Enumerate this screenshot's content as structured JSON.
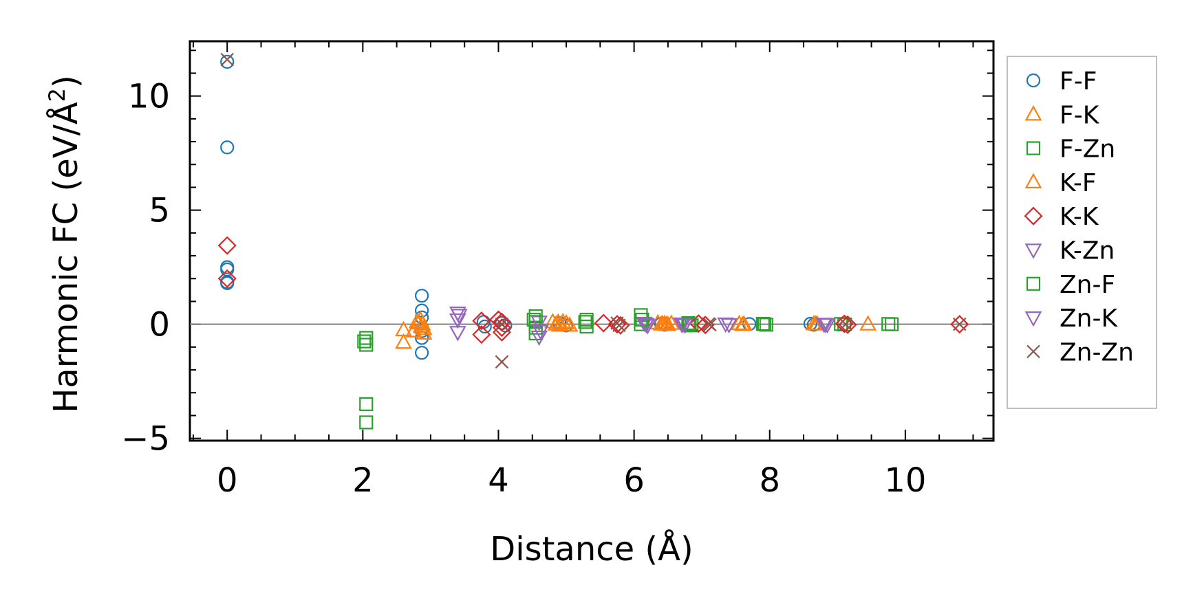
{
  "chart_data": {
    "type": "scatter",
    "xlabel": "Distance (Å)",
    "ylabel_main": "Harmonic FC (eV/Å",
    "ylabel_sup": "2",
    "ylabel_close": ")",
    "xlim": [
      -0.55,
      11.3
    ],
    "ylim": [
      -5.1,
      12.4
    ],
    "xticks": [
      0,
      2,
      4,
      6,
      8,
      10
    ],
    "xtick_labels": [
      "0",
      "2",
      "4",
      "6",
      "8",
      "10"
    ],
    "yticks": [
      -5,
      0,
      5,
      10
    ],
    "ytick_labels": [
      "−5",
      "0",
      "5",
      "10"
    ],
    "x_minor_step": 0.5,
    "y_minor_step": 1,
    "zero_line": true,
    "grid": false,
    "legend_position": "outside-right",
    "series": [
      {
        "name": "F-F",
        "marker": "circle",
        "color": "#1f77b4",
        "x": [
          0,
          0,
          0,
          0,
          0,
          0,
          2.87,
          2.87,
          2.87,
          2.87,
          2.87,
          2.87,
          3.78,
          3.8,
          4.05,
          4.1,
          4.9,
          5.0,
          6.4,
          6.45,
          7.7,
          8.6,
          8.65
        ],
        "y": [
          11.5,
          7.75,
          2.5,
          2.4,
          1.85,
          1.8,
          1.25,
          0.6,
          0.3,
          -0.3,
          -0.6,
          -1.25,
          0.1,
          -0.1,
          0.05,
          -0.05,
          0.05,
          -0.05,
          0.02,
          -0.02,
          0.01,
          0.02,
          -0.02
        ]
      },
      {
        "name": "F-K",
        "marker": "triangle-up",
        "color": "#ff7f0e",
        "x": [
          2.6,
          2.6,
          2.75,
          2.8,
          2.85,
          2.88,
          2.9,
          2.9,
          4.8,
          4.85,
          4.9,
          4.95,
          5.0,
          5.05,
          6.35,
          6.4,
          6.45,
          6.5,
          6.55,
          7.55,
          7.6,
          8.65,
          8.7,
          9.45
        ],
        "y": [
          -0.25,
          -0.8,
          -0.3,
          0.1,
          0.2,
          0.0,
          -0.2,
          -0.4,
          0.1,
          0.0,
          -0.05,
          0.1,
          0.05,
          -0.05,
          0.05,
          0.0,
          0.02,
          -0.02,
          0.03,
          0.02,
          -0.02,
          0.01,
          0.0,
          0.0
        ]
      },
      {
        "name": "F-Zn",
        "marker": "square",
        "color": "#2ca02c",
        "x": [
          2.05,
          2.05,
          2.05,
          2.05,
          4.55,
          4.55,
          4.55,
          4.55,
          5.3,
          5.3,
          6.1,
          6.1,
          6.8,
          6.85,
          7.9,
          7.95,
          9.05,
          9.1,
          9.75,
          9.8
        ],
        "y": [
          -3.5,
          -4.3,
          -0.6,
          -0.9,
          0.35,
          0.1,
          -0.15,
          -0.4,
          0.2,
          -0.1,
          0.4,
          0.0,
          0.05,
          -0.05,
          0.02,
          -0.02,
          0.01,
          -0.01,
          0.01,
          0.0
        ]
      },
      {
        "name": "K-F",
        "marker": "triangle-up",
        "color": "#ff7f0e",
        "x": [
          2.82,
          2.86,
          4.88,
          4.92,
          6.42,
          6.48,
          7.62,
          8.68
        ],
        "y": [
          0.05,
          -0.1,
          0.08,
          -0.03,
          0.01,
          -0.01,
          0.0,
          0.01
        ]
      },
      {
        "name": "K-K",
        "marker": "diamond",
        "color": "#d62728",
        "x": [
          0,
          0,
          3.75,
          3.75,
          4.0,
          4.05,
          4.05,
          4.05,
          5.55,
          5.75,
          5.8,
          6.95,
          7.05,
          9.1,
          9.15,
          10.8
        ],
        "y": [
          3.45,
          2.0,
          0.15,
          -0.45,
          0.2,
          0.1,
          -0.15,
          -0.35,
          0.05,
          0.0,
          -0.05,
          0.03,
          -0.03,
          0.02,
          -0.02,
          0.0
        ]
      },
      {
        "name": "K-Zn",
        "marker": "triangle-down",
        "color": "#9467bd",
        "x": [
          3.4,
          3.4,
          3.4,
          4.6,
          4.6,
          6.15,
          6.2,
          6.7,
          6.75,
          7.35,
          7.4,
          8.8,
          8.85
        ],
        "y": [
          0.5,
          0.2,
          -0.35,
          0.1,
          -0.55,
          0.05,
          -0.05,
          0.02,
          -0.03,
          0.02,
          -0.01,
          0.01,
          -0.01
        ]
      },
      {
        "name": "Zn-F",
        "marker": "square",
        "color": "#2ca02c",
        "x": [
          2.02,
          4.52,
          5.28,
          6.12,
          6.82,
          7.92
        ],
        "y": [
          -0.75,
          0.2,
          0.1,
          0.2,
          0.0,
          0.0
        ]
      },
      {
        "name": "Zn-K",
        "marker": "triangle-down",
        "color": "#9467bd",
        "x": [
          3.42,
          4.62,
          6.18,
          6.72,
          8.82
        ],
        "y": [
          0.4,
          -0.3,
          0.0,
          0.0,
          0.0
        ]
      },
      {
        "name": "Zn-Zn",
        "marker": "x",
        "color": "#8c564b",
        "x": [
          0,
          4.05,
          4.05,
          5.75,
          5.78,
          7.1,
          7.12,
          9.12,
          10.8
        ],
        "y": [
          11.6,
          -1.65,
          0.0,
          0.05,
          -0.05,
          0.02,
          -0.02,
          0.0,
          0.0
        ]
      }
    ]
  }
}
